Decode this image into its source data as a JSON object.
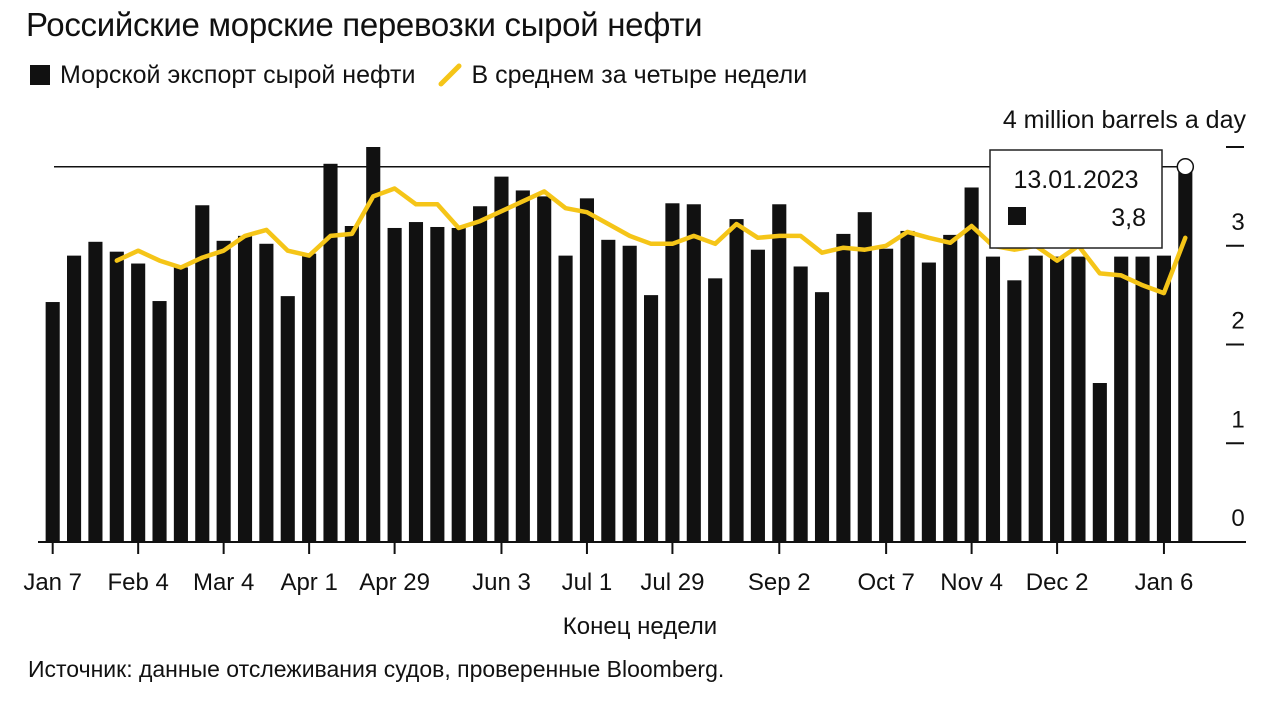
{
  "title": "Российские морские перевозки сырой нефти",
  "legend": {
    "bars": "Морской экспорт сырой нефти",
    "line": "В среднем за четыре недели"
  },
  "source": "Источник: данные отслеживания судов, проверенные Bloomberg.",
  "tooltip": {
    "date": "13.01.2023",
    "value": "3,8"
  },
  "colors": {
    "bars": "#111111",
    "line": "#f5c518",
    "tooltip_border": "#222222"
  },
  "chart_data": {
    "type": "bar",
    "title": "Российские морские перевозки сырой нефти",
    "xlabel": "Конец недели",
    "ylabel": "4 million barrels a day",
    "ylim": [
      0,
      4
    ],
    "yticks": [
      0,
      1,
      2,
      3
    ],
    "y_tick_labels": [
      "0",
      "1",
      "2",
      "3"
    ],
    "reference_line": 3.8,
    "x_tick_labels": [
      {
        "label": "Jan 7",
        "index": 0
      },
      {
        "label": "Feb 4",
        "index": 4
      },
      {
        "label": "Mar 4",
        "index": 8
      },
      {
        "label": "Apr 1",
        "index": 12
      },
      {
        "label": "Apr 29",
        "index": 16
      },
      {
        "label": "Jun 3",
        "index": 21
      },
      {
        "label": "Jul 1",
        "index": 25
      },
      {
        "label": "Jul 29",
        "index": 29
      },
      {
        "label": "Sep 2",
        "index": 34
      },
      {
        "label": "Oct 7",
        "index": 39
      },
      {
        "label": "Nov 4",
        "index": 43
      },
      {
        "label": "Dec 2",
        "index": 47
      },
      {
        "label": "Jan 6",
        "index": 52
      }
    ],
    "series": [
      {
        "name": "Морской экспорт сырой нефти",
        "type": "bar",
        "values": [
          2.43,
          2.9,
          3.04,
          2.94,
          2.82,
          2.44,
          2.78,
          3.41,
          3.05,
          3.1,
          3.02,
          2.49,
          2.92,
          3.83,
          3.2,
          4.0,
          3.18,
          3.24,
          3.19,
          3.18,
          3.4,
          3.7,
          3.56,
          3.5,
          2.9,
          3.48,
          3.06,
          3.0,
          2.5,
          3.43,
          3.42,
          2.67,
          3.27,
          2.96,
          3.42,
          2.79,
          2.53,
          3.12,
          3.34,
          2.97,
          3.15,
          2.83,
          3.11,
          3.59,
          2.89,
          2.65,
          2.9,
          2.89,
          2.89,
          1.61,
          2.89,
          2.89,
          2.9,
          3.8
        ]
      },
      {
        "name": "В среднем за четыре недели",
        "type": "line",
        "start_index": 3,
        "values": [
          2.85,
          2.95,
          2.85,
          2.78,
          2.88,
          2.95,
          3.1,
          3.16,
          2.95,
          2.9,
          3.1,
          3.12,
          3.5,
          3.58,
          3.42,
          3.42,
          3.18,
          3.25,
          3.35,
          3.45,
          3.55,
          3.38,
          3.34,
          3.22,
          3.1,
          3.02,
          3.02,
          3.1,
          3.02,
          3.22,
          3.08,
          3.1,
          3.1,
          2.93,
          2.98,
          2.96,
          3.0,
          3.14,
          3.08,
          3.03,
          3.2,
          3.0,
          2.96,
          3.0,
          2.85,
          3.0,
          2.72,
          2.7,
          2.6,
          2.52,
          3.08
        ]
      }
    ]
  }
}
